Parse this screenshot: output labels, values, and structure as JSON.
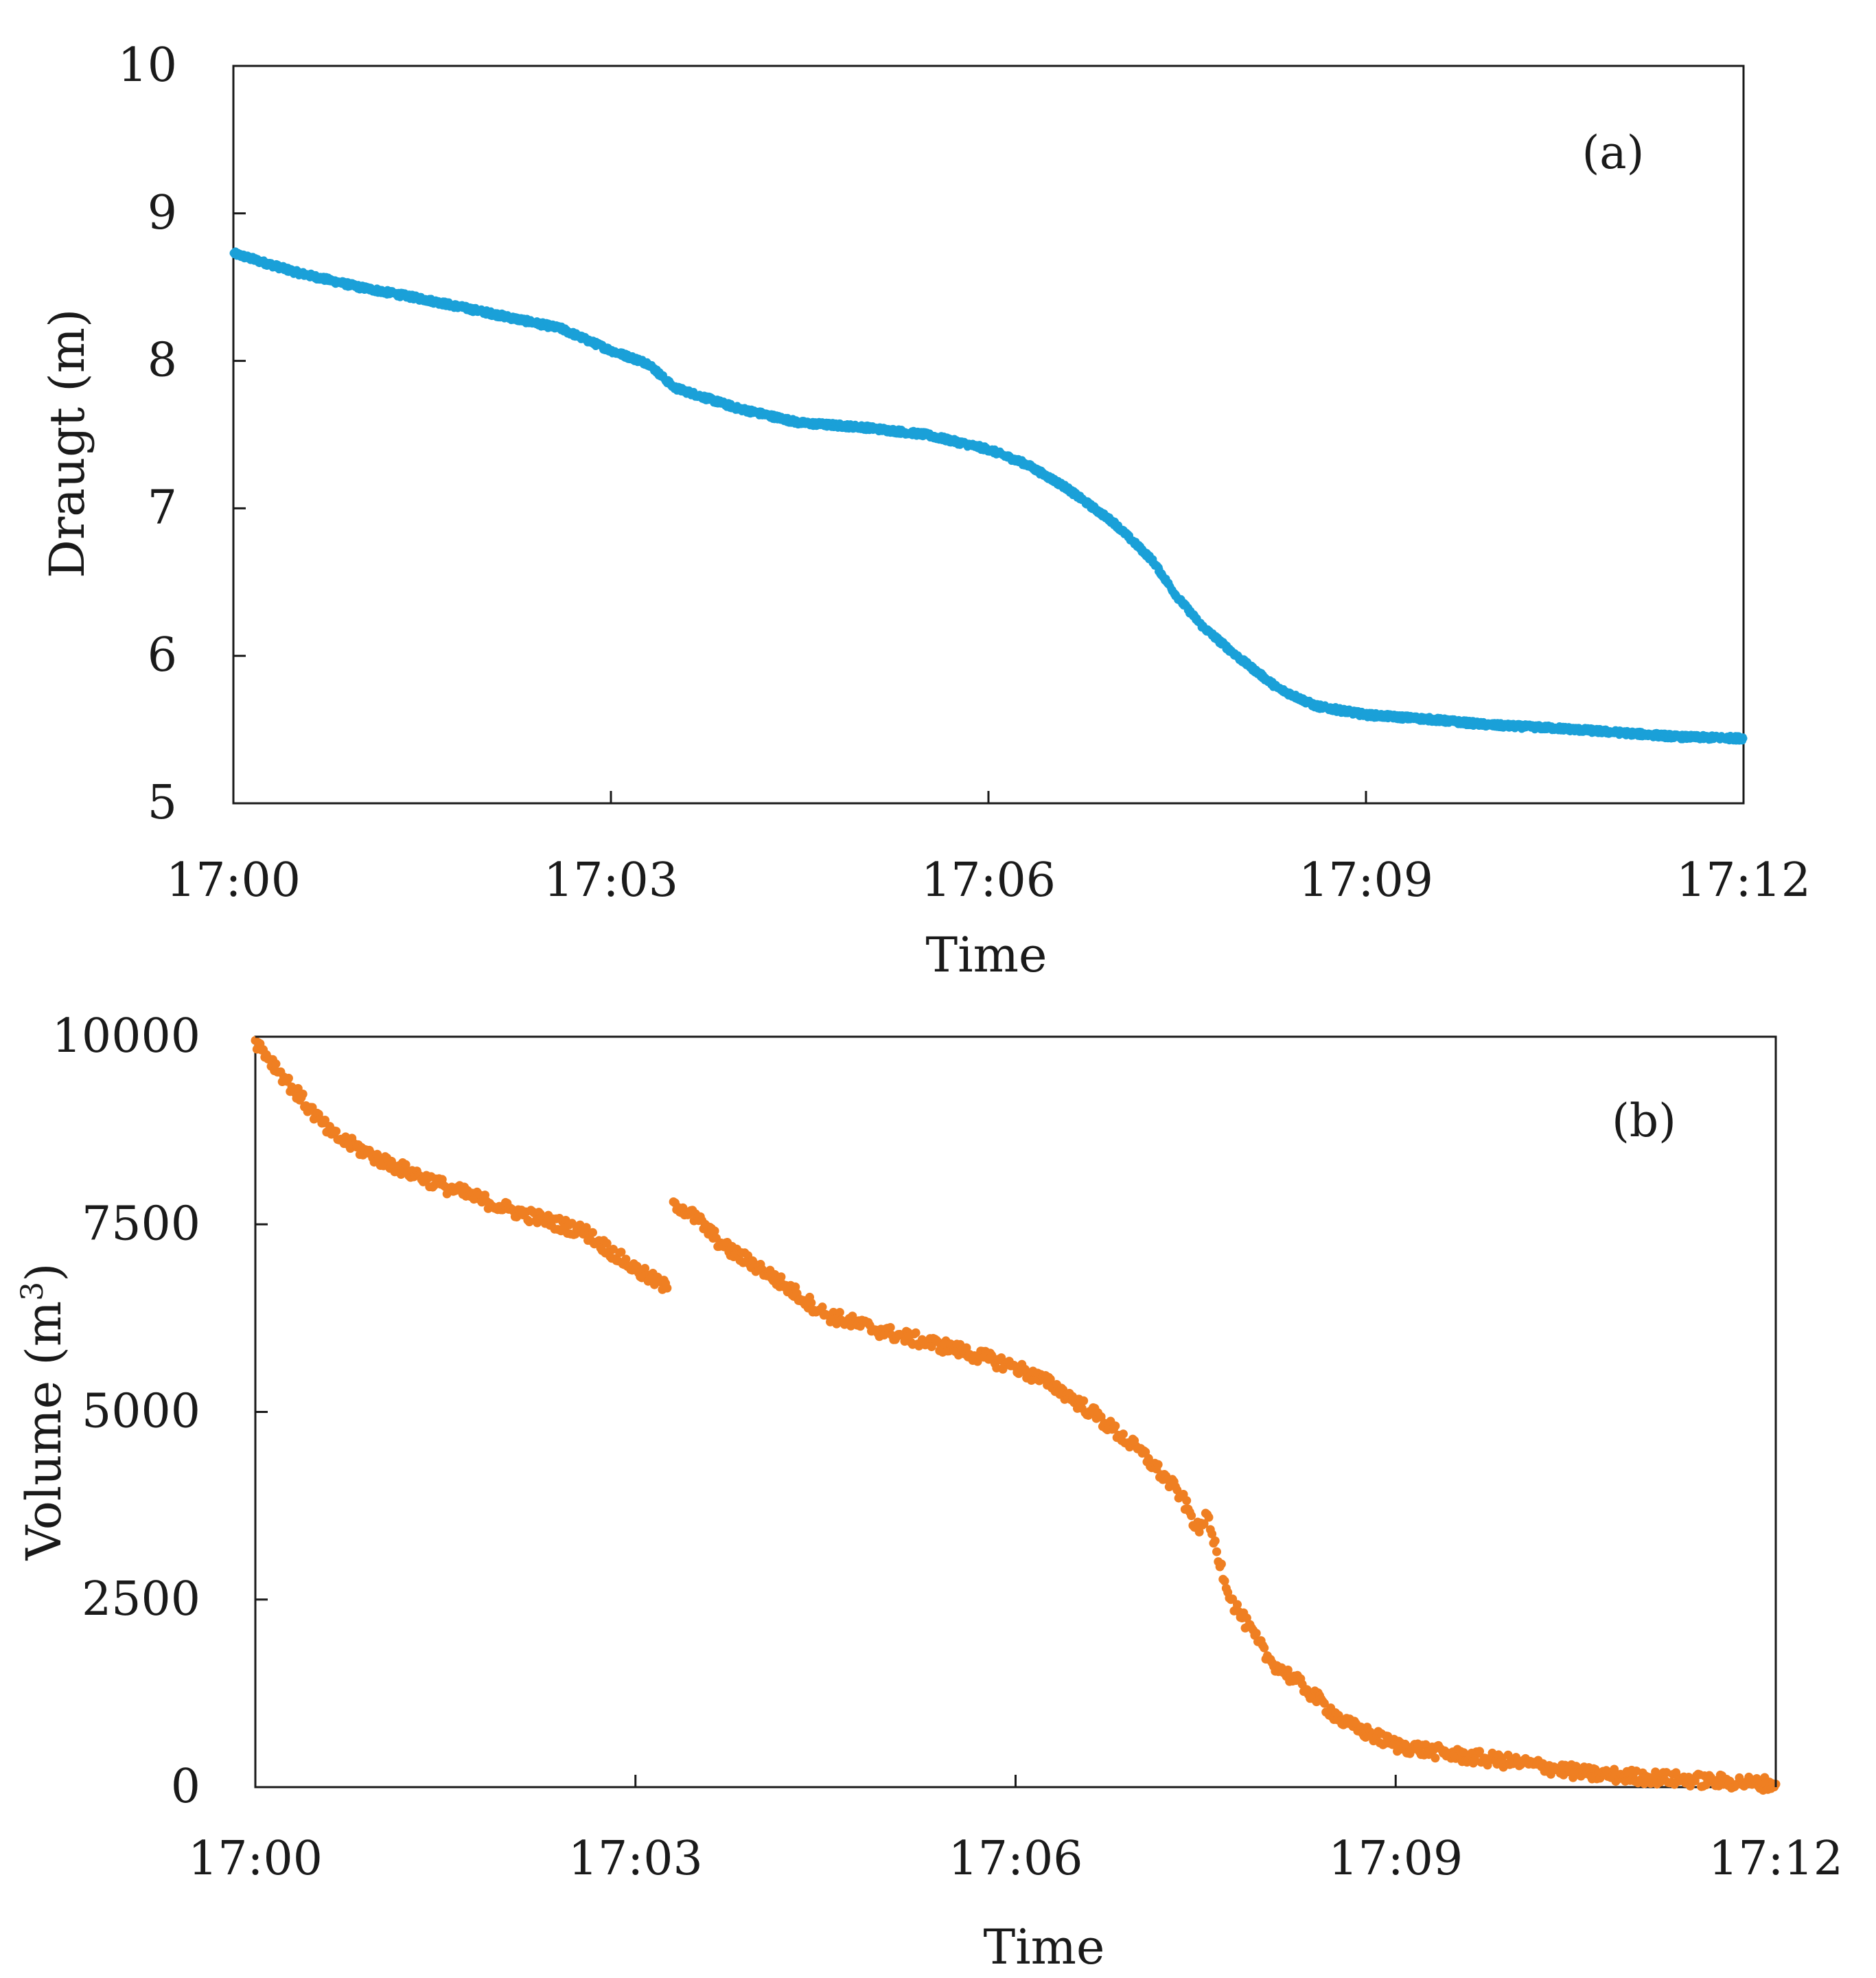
{
  "chart_data": [
    {
      "panel_label": "(a)",
      "type": "scatter",
      "color": "#1aa0d8",
      "xlabel": "Time",
      "ylabel": "Draugt (m)",
      "x_unit": "minutes after 17:00",
      "xlim": [
        0,
        12
      ],
      "ylim": [
        5,
        10
      ],
      "xticks": [
        0,
        3,
        6,
        9,
        12
      ],
      "xtick_labels": [
        "17:00",
        "17:03",
        "17:06",
        "17:09",
        "17:12"
      ],
      "yticks": [
        5,
        6,
        7,
        8,
        9,
        10
      ],
      "ytick_labels": [
        "5",
        "6",
        "7",
        "8",
        "9",
        "10"
      ],
      "grid": false,
      "series": [
        {
          "name": "Draught",
          "x": [
            0,
            0.5,
            1,
            1.5,
            2,
            2.6,
            3,
            3.3,
            3.5,
            4,
            4.5,
            5,
            5.5,
            6,
            6.3,
            6.6,
            7,
            7.3,
            7.5,
            7.7,
            8,
            8.3,
            8.6,
            9,
            9.5,
            10,
            10.5,
            11,
            11.5,
            12
          ],
          "y": [
            8.73,
            8.6,
            8.5,
            8.42,
            8.33,
            8.22,
            8.07,
            7.98,
            7.82,
            7.68,
            7.58,
            7.55,
            7.5,
            7.4,
            7.3,
            7.15,
            6.9,
            6.65,
            6.4,
            6.2,
            5.98,
            5.78,
            5.66,
            5.6,
            5.57,
            5.53,
            5.51,
            5.48,
            5.45,
            5.44
          ]
        }
      ]
    },
    {
      "panel_label": "(b)",
      "type": "scatter",
      "color": "#ef7f22",
      "xlabel": "Time",
      "ylabel": "Volume (m",
      "ylabel_superscript": "3",
      "ylabel_suffix": ")",
      "x_unit": "minutes after 17:00",
      "xlim": [
        0,
        12
      ],
      "ylim": [
        0,
        10000
      ],
      "xticks": [
        0,
        3,
        6,
        9,
        12
      ],
      "xtick_labels": [
        "17:00",
        "17:03",
        "17:06",
        "17:09",
        "17:12"
      ],
      "yticks": [
        0,
        2500,
        5000,
        7500,
        10000
      ],
      "ytick_labels": [
        "0",
        "2500",
        "5000",
        "7500",
        "10000"
      ],
      "grid": false,
      "series": [
        {
          "name": "Volume",
          "x": [
            0,
            0.3,
            0.6,
            1,
            1.5,
            2,
            2.6,
            3,
            3.25,
            3.3,
            3.5,
            3.7,
            4,
            4.5,
            5,
            5.5,
            6,
            6.3,
            6.6,
            7,
            7.3,
            7.45,
            7.5,
            7.7,
            8,
            8.3,
            8.6,
            9,
            9.5,
            10,
            10.5,
            11,
            11.5,
            12
          ],
          "y": [
            9950,
            9300,
            8700,
            8350,
            8000,
            7700,
            7400,
            6900,
            6650,
            7800,
            7550,
            7200,
            6900,
            6300,
            6050,
            5850,
            5600,
            5350,
            5000,
            4450,
            3900,
            3400,
            3650,
            2500,
            1700,
            1300,
            850,
            560,
            420,
            320,
            180,
            130,
            80,
            40
          ]
        }
      ]
    }
  ]
}
